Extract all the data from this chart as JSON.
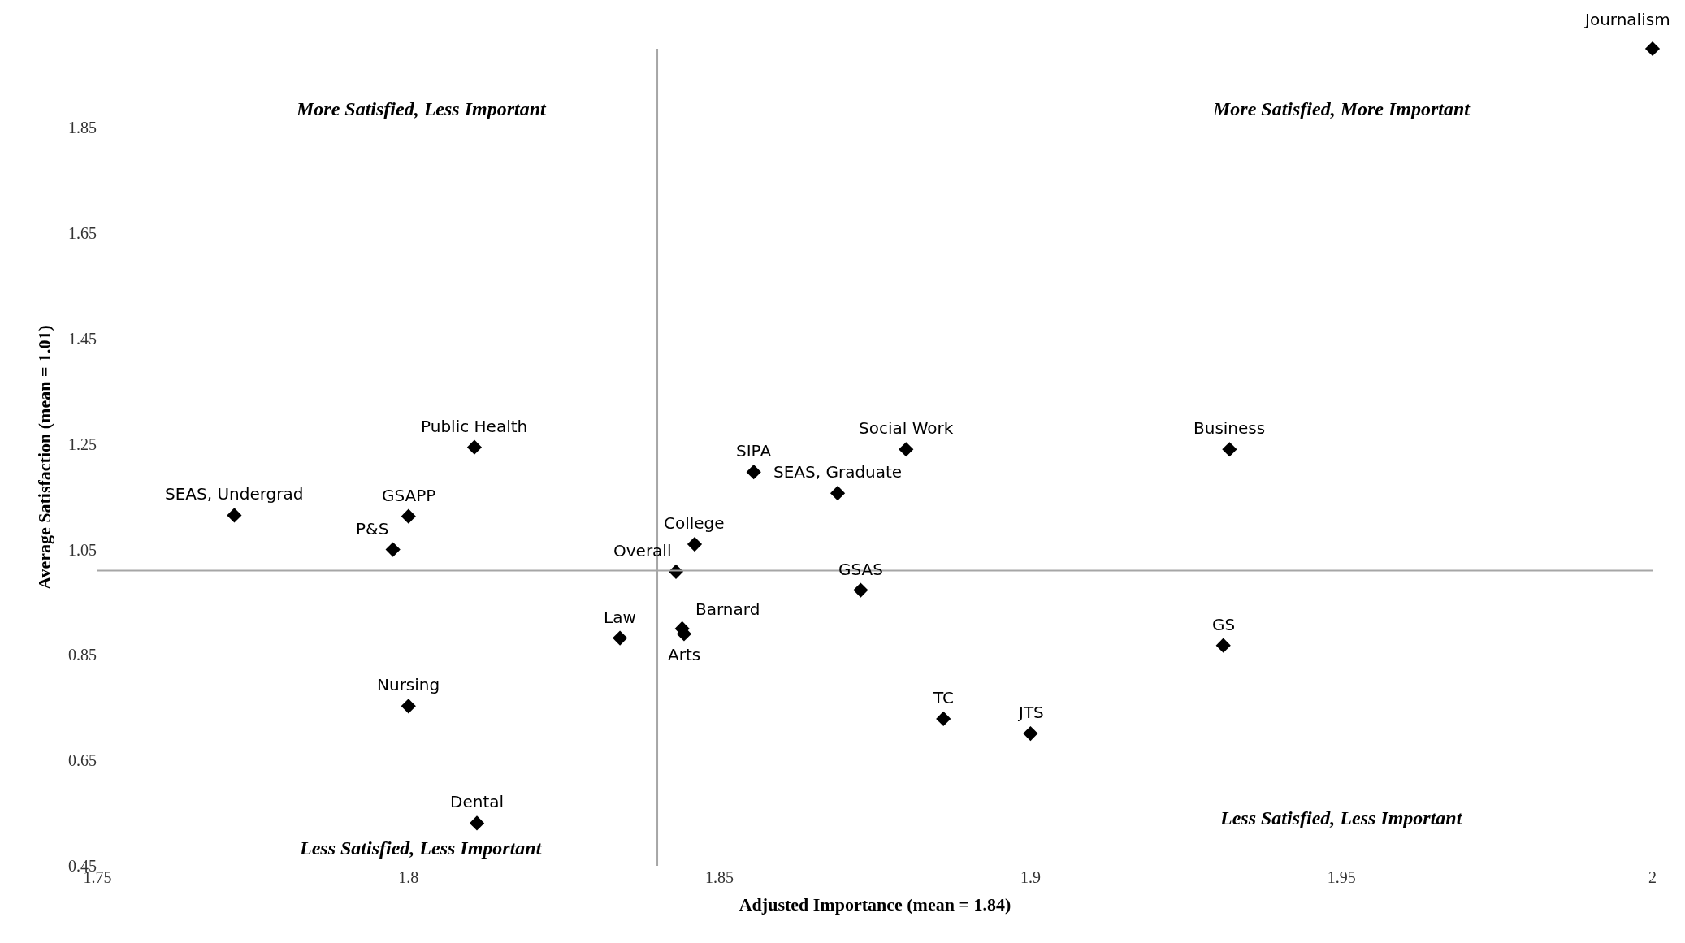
{
  "chart_data": {
    "type": "scatter",
    "xlabel": "Adjusted Importance (mean = 1.84)",
    "ylabel": "Average Satisfaction (mean = 1.01)",
    "x": [
      2.0,
      1.8106,
      1.772,
      1.8,
      1.7975,
      1.8,
      1.811,
      1.834,
      1.843,
      1.846,
      1.844,
      1.8443,
      1.8555,
      1.869,
      1.88,
      1.8727,
      1.886,
      1.9,
      1.932,
      1.931
    ],
    "values": [
      2.0,
      1.244,
      1.115,
      1.113,
      1.05,
      0.753,
      0.531,
      0.882,
      1.008,
      1.06,
      0.9,
      0.89,
      1.197,
      1.157,
      1.24,
      0.973,
      0.729,
      0.701,
      1.24,
      0.868
    ],
    "color": "#000000",
    "marker": "diamond",
    "xlim": [
      1.75,
      2.0
    ],
    "xticks": [
      1.75,
      1.8,
      1.85,
      1.9,
      1.95,
      2
    ],
    "ylim": [
      0.45,
      2.0
    ],
    "yticks": [
      0.45,
      0.65,
      0.85,
      1.05,
      1.25,
      1.45,
      1.65,
      1.85
    ],
    "ref_lines": [
      {
        "axis": "x",
        "value": 1.84,
        "color": "#a6a6a6"
      },
      {
        "axis": "y",
        "value": 1.01,
        "color": "#a6a6a6"
      }
    ],
    "annotations": [
      "More Satisfied, Less Important",
      "More Satisfied, More Important",
      "Less Satisfied, Less Important",
      "Less Satisfied, Less Important",
      {
        "text": "Journalism",
        "x": 2.0,
        "y": 2.0
      },
      {
        "text": "Public Health",
        "x": 1.8106,
        "y": 1.244
      },
      {
        "text": "SEAS, Undergrad",
        "x": 1.772,
        "y": 1.115
      },
      {
        "text": "GSAPP",
        "x": 1.8,
        "y": 1.113
      },
      {
        "text": "P&S",
        "x": 1.7975,
        "y": 1.05
      },
      {
        "text": "Nursing",
        "x": 1.8,
        "y": 0.753
      },
      {
        "text": "Dental",
        "x": 1.811,
        "y": 0.531
      },
      {
        "text": "Law",
        "x": 1.834,
        "y": 0.882
      },
      {
        "text": "Overall",
        "x": 1.843,
        "y": 1.008
      },
      {
        "text": "College",
        "x": 1.846,
        "y": 1.06
      },
      {
        "text": "Barnard",
        "x": 1.844,
        "y": 0.9
      },
      {
        "text": "Arts",
        "x": 1.8443,
        "y": 0.89
      },
      {
        "text": "SIPA",
        "x": 1.8555,
        "y": 1.197
      },
      {
        "text": "SEAS, Graduate",
        "x": 1.869,
        "y": 1.157
      },
      {
        "text": "Social Work",
        "x": 1.88,
        "y": 1.24
      },
      {
        "text": "GSAS",
        "x": 1.8727,
        "y": 0.973
      },
      {
        "text": "TC",
        "x": 1.886,
        "y": 0.729
      },
      {
        "text": "JTS",
        "x": 1.9,
        "y": 0.701
      },
      {
        "text": "Business",
        "x": 1.932,
        "y": 1.24
      },
      {
        "text": "GS",
        "x": 1.931,
        "y": 0.868
      }
    ]
  }
}
